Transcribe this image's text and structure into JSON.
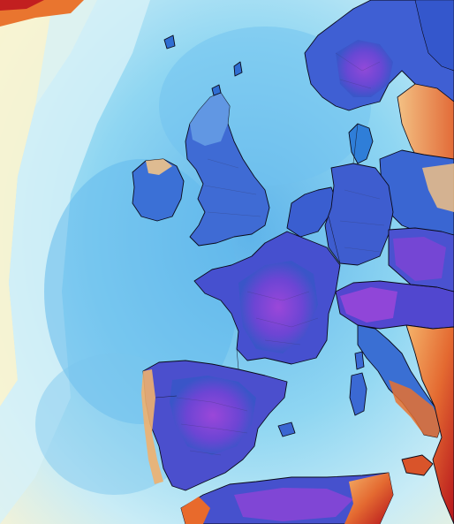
{
  "map": {
    "type": "weather-model-anomaly-map",
    "region": "western-europe",
    "colors": {
      "ocean_far": "#fbf4cf",
      "ocean_mid": "#9fdcf3",
      "ocean_cool": "#57b9ee",
      "land_cold": "#3d54c9",
      "land_very_cold": "#8a3fd6",
      "land_cool": "#2f7ed8",
      "land_mild": "#f2c58a",
      "land_warm": "#e05a2a",
      "land_hot": "#b3121b",
      "border": "#111126"
    },
    "visible_text": []
  }
}
